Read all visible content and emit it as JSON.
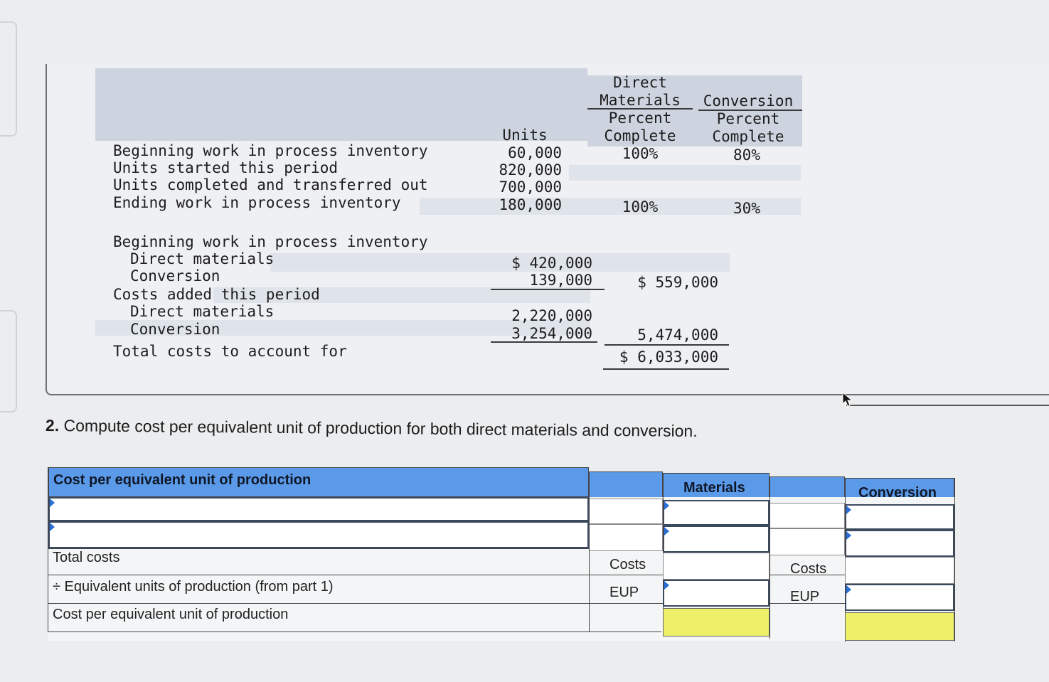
{
  "data_table": {
    "headers": {
      "units": "Units",
      "dm": [
        "Direct",
        "Materials",
        "Percent",
        "Complete"
      ],
      "conv": [
        "Conversion",
        "Percent",
        "Complete"
      ]
    },
    "rows": [
      {
        "label": "Beginning work in process inventory",
        "units": "60,000",
        "dm": "100%",
        "conv": "80%"
      },
      {
        "label": "Units started this period",
        "units": "820,000",
        "dm": "",
        "conv": ""
      },
      {
        "label": "Units completed and transferred out",
        "units": "700,000",
        "dm": "",
        "conv": ""
      },
      {
        "label": "Ending work in process inventory",
        "units": "180,000",
        "dm": "100%",
        "conv": "30%"
      }
    ]
  },
  "cost_table": {
    "beginning_label": "Beginning work in process inventory",
    "beg_dm_label": "Direct materials",
    "beg_dm": "$ 420,000",
    "beg_conv_label": "Conversion",
    "beg_conv": "139,000",
    "beg_total": "$ 559,000",
    "added_label": "Costs added this period",
    "add_dm_label": "Direct materials",
    "add_dm": "2,220,000",
    "add_conv_label": "Conversion",
    "add_conv": "3,254,000",
    "add_total": "5,474,000",
    "total_label": "Total costs to account for",
    "total": "$ 6,033,000"
  },
  "question": {
    "number": "2.",
    "text": "Compute cost per equivalent unit of production for both direct materials and conversion."
  },
  "answer_table": {
    "header_label": "Cost per equivalent unit of production",
    "materials_header": "Materials",
    "conversion_header": "Conversion",
    "rows": {
      "total_costs": "Total costs",
      "eup": "÷ Equivalent units of production (from part 1)",
      "cost_per_eup": "Cost per equivalent unit of production"
    },
    "materials_costs_label": "Costs",
    "materials_eup_label": "EUP",
    "conversion_costs_label": "Costs",
    "conversion_eup_label": "EUP",
    "inputs": {
      "row1_label": "",
      "row2_label": "",
      "mat_row1": "",
      "mat_row2": "",
      "mat_costs": "",
      "mat_eup": "",
      "conv_row1": "",
      "conv_row2": "",
      "conv_costs": "",
      "conv_eup": ""
    },
    "colors": {
      "header": "#5b9ae8",
      "result_cell": "#eef068",
      "input_marker": "#2a6fd6"
    }
  },
  "icons": {
    "cursor": "mouse-pointer-icon"
  }
}
